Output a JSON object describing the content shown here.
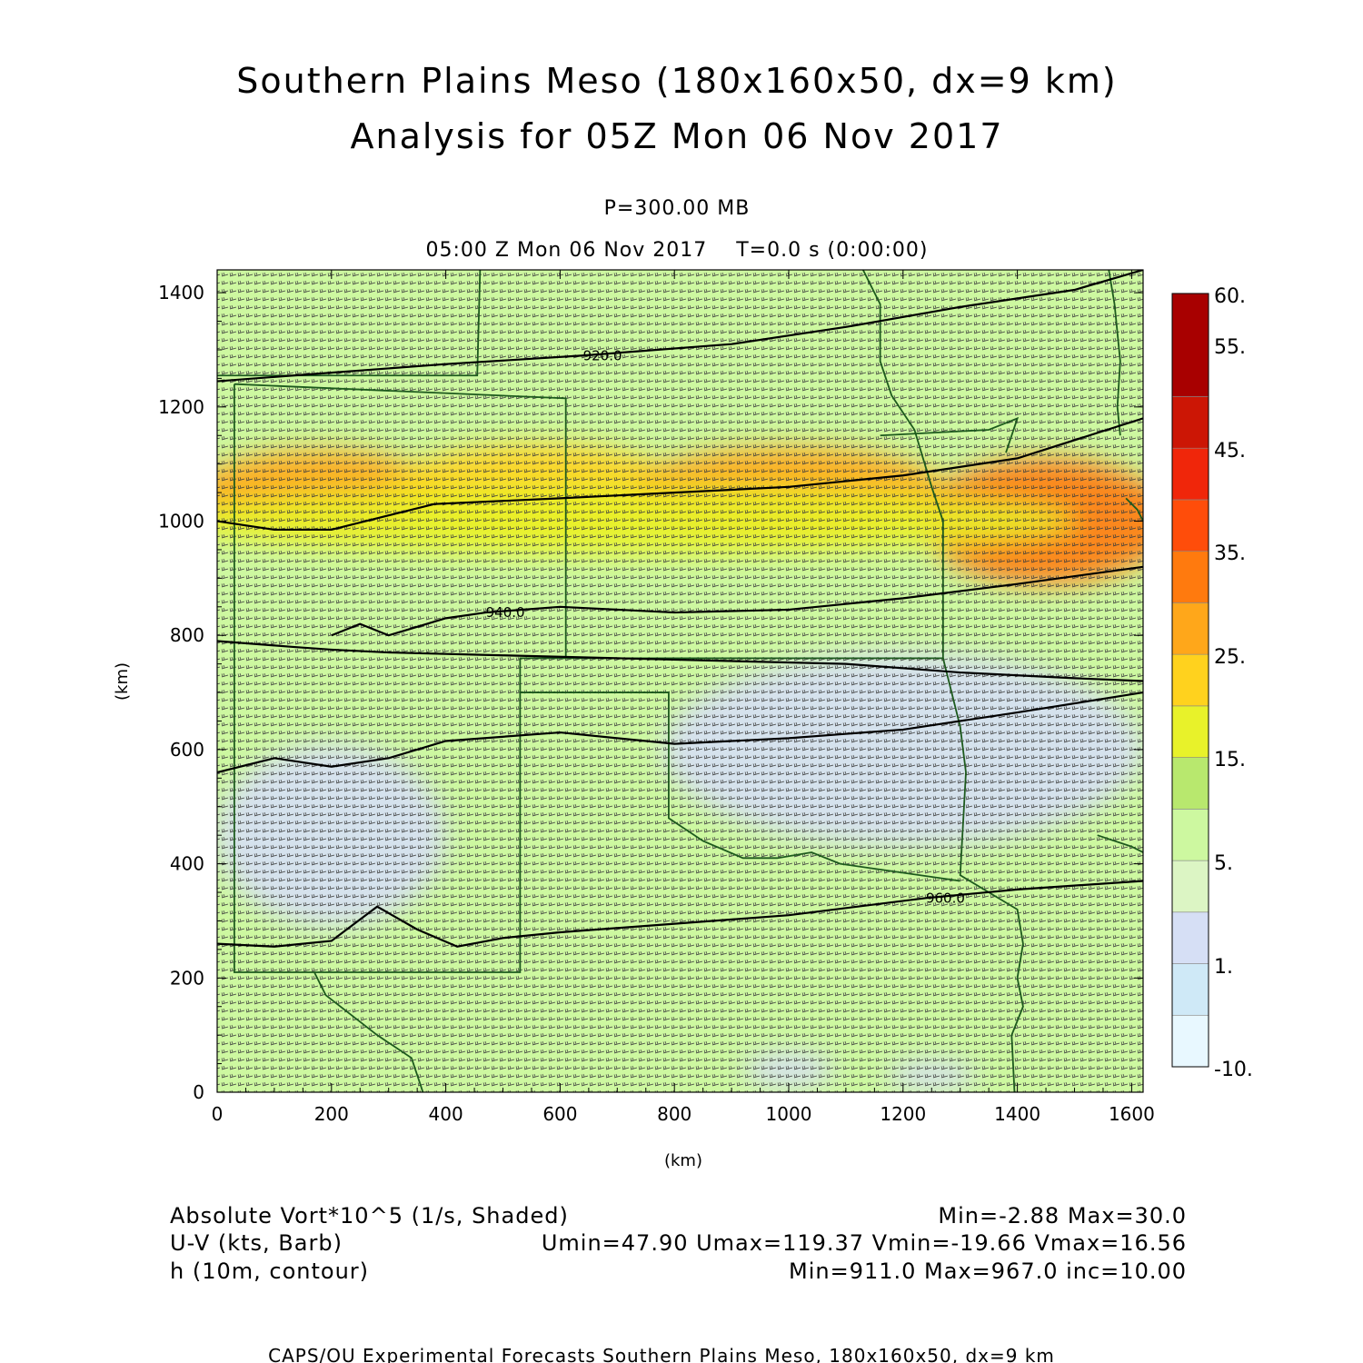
{
  "header": {
    "title_line1": "Southern Plains Meso (180x160x50, dx=9 km)",
    "title_line2": "Analysis for 05Z Mon 06 Nov 2017",
    "level": "P=300.00 MB",
    "time_line": "05:00 Z Mon 06 Nov 2017    T=0.0 s (0:00:00)"
  },
  "footer": {
    "field1_label": "Absolute Vort*10^5 (1/s, Shaded)",
    "field1_stats": "Min=-2.88 Max=30.0",
    "field2_label": "U-V (kts, Barb)",
    "field2_stats": "Umin=47.90 Umax=119.37 Vmin=-19.66 Vmax=16.56",
    "field3_label": "h (10m, contour)",
    "field3_stats": "Min=911.0 Max=967.0 inc=10.00",
    "credit": "CAPS/OU Experimental Forecasts  Southern Plains Meso, 180x160x50, dx=9 km"
  },
  "colorbar": {
    "tick_labels": [
      "60.",
      "55.",
      "45.",
      "35.",
      "25.",
      "15.",
      "5.",
      "1.",
      "-10."
    ],
    "colors": [
      "#e8f8ff",
      "#cfe9f7",
      "#d6dff5",
      "#dcf5c4",
      "#cdf8a0",
      "#b8e86e",
      "#e8f22a",
      "#ffd21e",
      "#ffa71a",
      "#ff7a0e",
      "#ff4d0a",
      "#f0260a",
      "#cc1605",
      "#a80000"
    ]
  },
  "chart_data": {
    "type": "heatmap",
    "xlabel": "(km)",
    "ylabel": "(km)",
    "xlim": [
      0,
      1620
    ],
    "ylim": [
      0,
      1440
    ],
    "x_ticks": [
      0,
      200,
      400,
      600,
      800,
      1000,
      1200,
      1400,
      1600
    ],
    "y_ticks": [
      0,
      200,
      400,
      600,
      800,
      1000,
      1200,
      1400
    ],
    "shaded_field": "Absolute Vort*10^5 (1/s)",
    "shaded_min": -2.88,
    "shaded_max": 30.0,
    "vort_regions": [
      {
        "cx": 180,
        "cy": 1050,
        "rx": 220,
        "ry": 75,
        "level": 28
      },
      {
        "cx": 560,
        "cy": 1055,
        "rx": 260,
        "ry": 80,
        "level": 24
      },
      {
        "cx": 1000,
        "cy": 1050,
        "rx": 280,
        "ry": 80,
        "level": 25
      },
      {
        "cx": 1450,
        "cy": 1000,
        "rx": 220,
        "ry": 110,
        "level": 30
      },
      {
        "cx": 700,
        "cy": 1000,
        "rx": 800,
        "ry": 60,
        "level": 17
      },
      {
        "cx": 1200,
        "cy": 600,
        "rx": 420,
        "ry": 170,
        "level": 1.5
      },
      {
        "cx": 200,
        "cy": 450,
        "rx": 200,
        "ry": 160,
        "level": 1.5
      },
      {
        "cx": 1000,
        "cy": 40,
        "rx": 80,
        "ry": 30,
        "level": 1.5
      },
      {
        "cx": 1250,
        "cy": 30,
        "rx": 80,
        "ry": 25,
        "level": 1.5
      }
    ],
    "contours": [
      {
        "label": "920.0",
        "label_x": 640,
        "label_y": 1290,
        "points": [
          [
            0,
            1245
          ],
          [
            200,
            1260
          ],
          [
            400,
            1275
          ],
          [
            640,
            1290
          ],
          [
            900,
            1310
          ],
          [
            1100,
            1340
          ],
          [
            1300,
            1375
          ],
          [
            1500,
            1405
          ],
          [
            1620,
            1440
          ]
        ]
      },
      {
        "label": "",
        "label_x": 0,
        "label_y": 0,
        "points": [
          [
            0,
            1000
          ],
          [
            100,
            985
          ],
          [
            200,
            985
          ],
          [
            300,
            1010
          ],
          [
            380,
            1030
          ],
          [
            600,
            1040
          ],
          [
            800,
            1050
          ],
          [
            1000,
            1060
          ],
          [
            1200,
            1080
          ],
          [
            1400,
            1110
          ],
          [
            1620,
            1180
          ]
        ]
      },
      {
        "label": "940.0",
        "label_x": 470,
        "label_y": 840,
        "points": [
          [
            200,
            800
          ],
          [
            250,
            820
          ],
          [
            300,
            800
          ],
          [
            350,
            815
          ],
          [
            400,
            830
          ],
          [
            470,
            840
          ],
          [
            600,
            850
          ],
          [
            800,
            840
          ],
          [
            1000,
            845
          ],
          [
            1200,
            865
          ],
          [
            1400,
            890
          ],
          [
            1620,
            920
          ]
        ]
      },
      {
        "label": "",
        "label_x": 0,
        "label_y": 0,
        "points": [
          [
            0,
            790
          ],
          [
            130,
            780
          ],
          [
            200,
            775
          ],
          [
            300,
            770
          ],
          [
            500,
            765
          ],
          [
            700,
            760
          ],
          [
            900,
            755
          ],
          [
            1100,
            750
          ],
          [
            1300,
            735
          ],
          [
            1500,
            725
          ],
          [
            1620,
            720
          ]
        ]
      },
      {
        "label": "",
        "label_x": 0,
        "label_y": 0,
        "points": [
          [
            0,
            560
          ],
          [
            100,
            585
          ],
          [
            200,
            570
          ],
          [
            300,
            585
          ],
          [
            400,
            615
          ],
          [
            600,
            630
          ],
          [
            800,
            610
          ],
          [
            1000,
            620
          ],
          [
            1200,
            635
          ],
          [
            1400,
            665
          ],
          [
            1620,
            700
          ]
        ]
      },
      {
        "label": "960.0",
        "label_x": 1240,
        "label_y": 340,
        "points": [
          [
            0,
            260
          ],
          [
            100,
            255
          ],
          [
            200,
            265
          ],
          [
            280,
            325
          ],
          [
            350,
            285
          ],
          [
            420,
            255
          ],
          [
            500,
            270
          ],
          [
            600,
            280
          ],
          [
            800,
            295
          ],
          [
            1000,
            310
          ],
          [
            1240,
            340
          ],
          [
            1400,
            355
          ],
          [
            1620,
            370
          ]
        ]
      }
    ],
    "state_borders": [
      [
        [
          460,
          1440
        ],
        [
          455,
          1255
        ],
        [
          0,
          1255
        ]
      ],
      [
        [
          30,
          1240
        ],
        [
          610,
          1215
        ],
        [
          610,
          760
        ],
        [
          530,
          760
        ],
        [
          530,
          210
        ],
        [
          30,
          210
        ],
        [
          30,
          1240
        ]
      ],
      [
        [
          610,
          760
        ],
        [
          1270,
          760
        ]
      ],
      [
        [
          530,
          700
        ],
        [
          790,
          700
        ],
        [
          790,
          480
        ],
        [
          850,
          440
        ],
        [
          920,
          410
        ],
        [
          980,
          410
        ],
        [
          1040,
          420
        ],
        [
          1090,
          400
        ],
        [
          1300,
          370
        ]
      ],
      [
        [
          1160,
          1150
        ],
        [
          1350,
          1160
        ],
        [
          1400,
          1180
        ],
        [
          1380,
          1120
        ]
      ],
      [
        [
          1130,
          1440
        ],
        [
          1160,
          1380
        ],
        [
          1160,
          1280
        ],
        [
          1180,
          1220
        ],
        [
          1220,
          1160
        ],
        [
          1250,
          1060
        ],
        [
          1270,
          1000
        ],
        [
          1270,
          760
        ],
        [
          1300,
          640
        ],
        [
          1310,
          560
        ],
        [
          1300,
          380
        ],
        [
          1350,
          350
        ],
        [
          1400,
          320
        ],
        [
          1410,
          260
        ],
        [
          1400,
          200
        ],
        [
          1410,
          150
        ],
        [
          1390,
          100
        ],
        [
          1395,
          0
        ]
      ],
      [
        [
          1560,
          1440
        ],
        [
          1570,
          1380
        ],
        [
          1580,
          1280
        ],
        [
          1575,
          1200
        ],
        [
          1580,
          1150
        ]
      ],
      [
        [
          170,
          210
        ],
        [
          190,
          170
        ],
        [
          280,
          100
        ],
        [
          340,
          60
        ],
        [
          360,
          0
        ]
      ],
      [
        [
          1590,
          1040
        ],
        [
          1610,
          1020
        ],
        [
          1620,
          1000
        ]
      ],
      [
        [
          1540,
          450
        ],
        [
          1600,
          430
        ],
        [
          1620,
          420
        ]
      ]
    ]
  }
}
